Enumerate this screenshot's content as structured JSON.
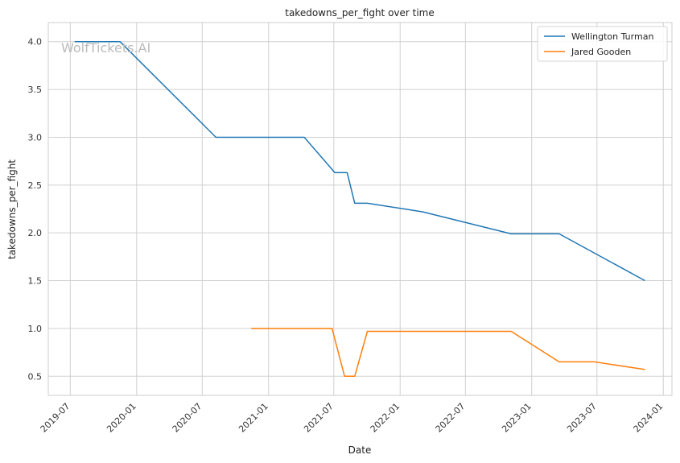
{
  "watermark": "WolfTickets.AI",
  "chart_data": {
    "type": "line",
    "title": "takedowns_per_fight over time",
    "xlabel": "Date",
    "ylabel": "takedowns_per_fight",
    "x_ticks": [
      "2019-07",
      "2020-01",
      "2020-07",
      "2021-01",
      "2021-07",
      "2022-01",
      "2022-07",
      "2023-01",
      "2023-07",
      "2024-01"
    ],
    "y_ticks": [
      0.5,
      1.0,
      1.5,
      2.0,
      2.5,
      3.0,
      3.5,
      4.0
    ],
    "xlim": [
      "2019-05-01",
      "2024-01-25"
    ],
    "ylim": [
      0.3,
      4.2
    ],
    "grid": true,
    "legend_position": "top-right",
    "series": [
      {
        "name": "Wellington Turman",
        "color": "#1f77b4",
        "points": [
          {
            "x": "2019-07-13",
            "y": 4.0
          },
          {
            "x": "2019-11-16",
            "y": 4.0
          },
          {
            "x": "2020-08-08",
            "y": 3.0
          },
          {
            "x": "2021-04-10",
            "y": 3.0
          },
          {
            "x": "2021-07-04",
            "y": 2.63
          },
          {
            "x": "2021-08-07",
            "y": 2.63
          },
          {
            "x": "2021-08-28",
            "y": 2.31
          },
          {
            "x": "2021-10-02",
            "y": 2.31
          },
          {
            "x": "2022-03-05",
            "y": 2.22
          },
          {
            "x": "2022-11-05",
            "y": 1.99
          },
          {
            "x": "2023-03-18",
            "y": 1.99
          },
          {
            "x": "2023-11-11",
            "y": 1.5
          }
        ]
      },
      {
        "name": "Jared Gooden",
        "color": "#ff7f0e",
        "points": [
          {
            "x": "2020-11-14",
            "y": 1.0
          },
          {
            "x": "2021-06-26",
            "y": 1.0
          },
          {
            "x": "2021-07-31",
            "y": 0.5
          },
          {
            "x": "2021-08-28",
            "y": 0.5
          },
          {
            "x": "2021-10-02",
            "y": 0.97
          },
          {
            "x": "2022-11-05",
            "y": 0.97
          },
          {
            "x": "2023-03-18",
            "y": 0.65
          },
          {
            "x": "2023-06-24",
            "y": 0.65
          },
          {
            "x": "2023-11-11",
            "y": 0.57
          }
        ]
      }
    ]
  }
}
